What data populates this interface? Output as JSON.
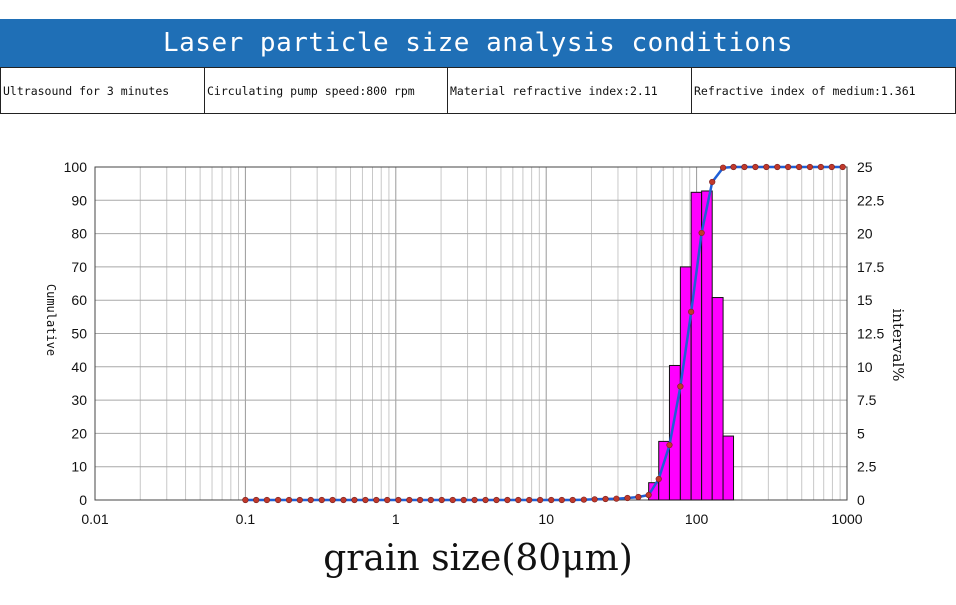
{
  "banner": {
    "title": "Laser particle size analysis conditions"
  },
  "conditions": [
    "Ultrasound for 3 minutes",
    "Circulating pump speed:800 rpm",
    "Material refractive index:2.11",
    "Refractive index of medium:1.361"
  ],
  "colors": {
    "banner": "#1f6fb6",
    "bars": "#ff00ff",
    "cumulative_line": "#1f5fd6",
    "markers": "#c0392b"
  },
  "chart_data": {
    "type": "bar",
    "x_scale": "log",
    "xlim": [
      0.01,
      1000
    ],
    "x_ticks": [
      "0.01",
      "0.1",
      "1",
      "10",
      "100",
      "1000"
    ],
    "xlabel": "grain size(80μm)",
    "y_left": {
      "label": "Cumulative",
      "lim": [
        0,
        100
      ],
      "ticks": [
        "0",
        "10",
        "20",
        "30",
        "40",
        "50",
        "60",
        "70",
        "80",
        "90",
        "100"
      ]
    },
    "y_right": {
      "label": "interval%",
      "lim": [
        0,
        25
      ],
      "ticks": [
        "0",
        "2.5",
        "5",
        "7.5",
        "10",
        "12.5",
        "15",
        "17.5",
        "20",
        "22.5",
        "25"
      ]
    },
    "grid": true,
    "series": [
      {
        "kind": "bar",
        "axis": "right",
        "edges": [
          48,
          56,
          66,
          78,
          92,
          108,
          127,
          150,
          176
        ],
        "values": [
          1.3,
          4.4,
          10.1,
          17.5,
          23.1,
          23.2,
          15.2,
          4.8
        ]
      },
      {
        "kind": "line",
        "axis": "left",
        "x": [
          0.1,
          0.118,
          0.139,
          0.165,
          0.195,
          0.23,
          0.272,
          0.322,
          0.38,
          0.449,
          0.531,
          0.628,
          0.742,
          0.877,
          1.04,
          1.23,
          1.45,
          1.71,
          2.02,
          2.39,
          2.83,
          3.34,
          3.95,
          4.67,
          5.52,
          6.52,
          7.71,
          9.11,
          10.8,
          12.7,
          15.0,
          17.8,
          21.0,
          24.8,
          29.3,
          34.7,
          41.0,
          48,
          56,
          66,
          78,
          92,
          108,
          127,
          150,
          176,
          208,
          246,
          291,
          344,
          406,
          480,
          567,
          670,
          792,
          936
        ],
        "y": [
          0,
          0,
          0,
          0,
          0,
          0,
          0,
          0,
          0,
          0,
          0,
          0,
          0,
          0,
          0,
          0,
          0,
          0,
          0,
          0,
          0,
          0,
          0,
          0,
          0,
          0,
          0,
          0,
          0,
          0,
          0,
          0.1,
          0.2,
          0.3,
          0.4,
          0.6,
          0.9,
          1.5,
          6.3,
          16.5,
          34.1,
          56.5,
          80.2,
          95.5,
          99.8,
          100,
          100,
          100,
          100,
          100,
          100,
          100,
          100,
          100,
          100,
          100
        ]
      }
    ]
  }
}
